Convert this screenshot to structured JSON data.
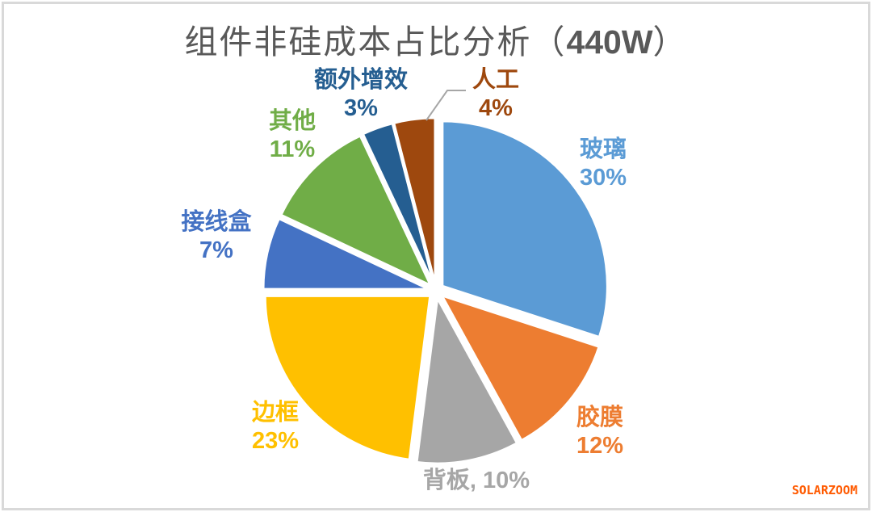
{
  "window": {
    "background": "#FFFFFF",
    "border_color": "#D9D9D9"
  },
  "title": {
    "prefix": "组件非硅成本占比分析（",
    "power": "440W",
    "suffix": "）",
    "full": "组件非硅成本占比分析（440W）",
    "color": "#595959"
  },
  "chart_data": {
    "type": "pie",
    "title": "组件非硅成本占比分析（440W）",
    "units": "percent",
    "start_angle_deg": 0,
    "direction": "clockwise",
    "exploded": true,
    "legend": "none",
    "data_labels": "outside",
    "categories": [
      "玻璃",
      "胶膜",
      "背板",
      "边框",
      "接线盒",
      "其他",
      "额外增效",
      "人工"
    ],
    "values": [
      30,
      12,
      10,
      23,
      7,
      11,
      3,
      4
    ],
    "colors": [
      "#5B9BD5",
      "#ED7D31",
      "#A6A6A6",
      "#FFC000",
      "#4472C4",
      "#70AD47",
      "#255E91",
      "#9E480E"
    ],
    "leader_line_color": "#A6A6A6"
  },
  "labels": {
    "glass": {
      "line1": "玻璃",
      "line2": "30%"
    },
    "eva": {
      "line1": "胶膜",
      "line2": "12%"
    },
    "backsheet": {
      "line1": "背板, 10%",
      "line2": ""
    },
    "frame": {
      "line1": "边框",
      "line2": "23%"
    },
    "junction_box": {
      "line1": "接线盒",
      "line2": "7%"
    },
    "other": {
      "line1": "其他",
      "line2": "11%"
    },
    "extra_gain": {
      "line1": "额外增效",
      "line2": "3%"
    },
    "labor": {
      "line1": "人工",
      "line2": "4%"
    }
  },
  "watermark": {
    "text": "SOLARZOOM",
    "color": "#FF5A00"
  }
}
